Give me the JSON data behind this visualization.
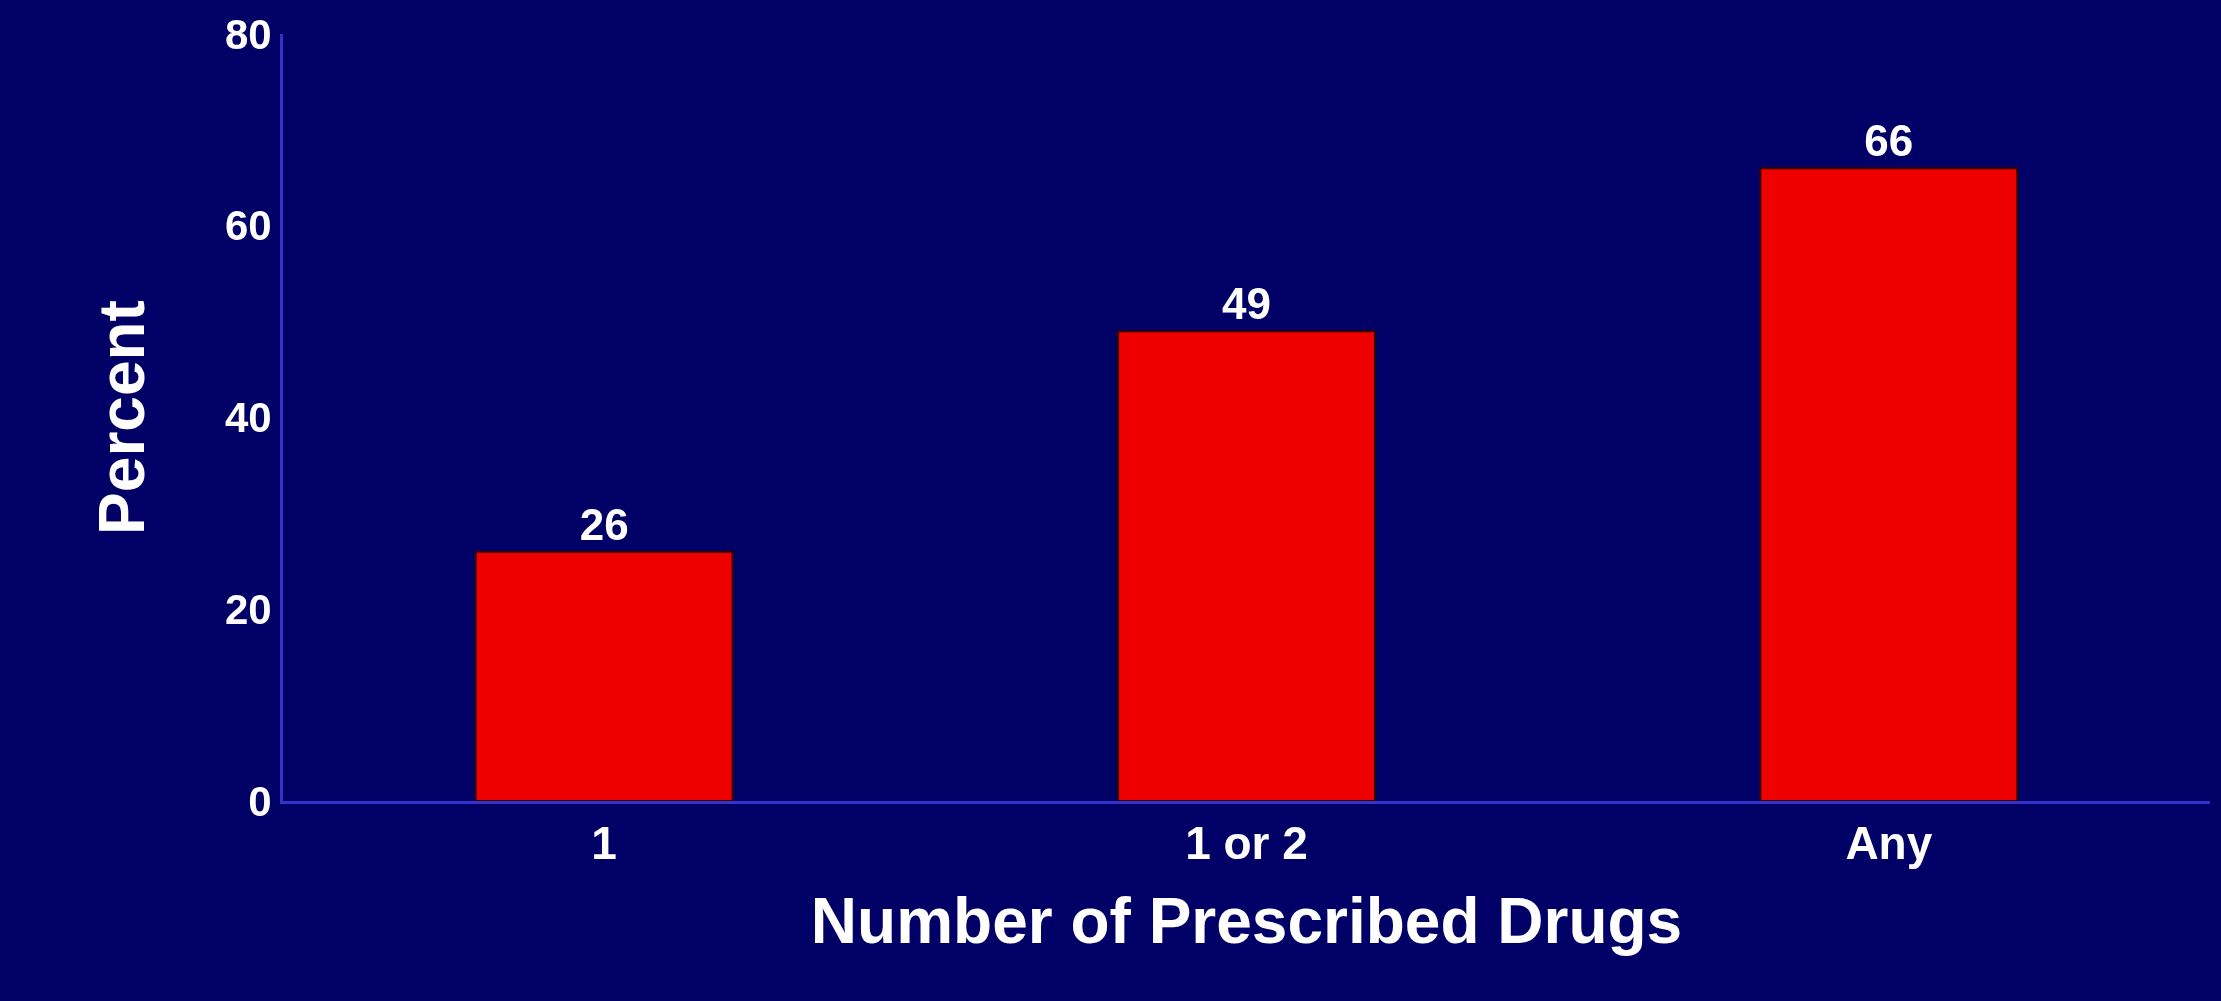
{
  "chart_data": {
    "type": "bar",
    "xlabel": "Number of Prescribed Drugs",
    "ylabel": "Percent",
    "categories": [
      "1",
      "1 or 2",
      "Any"
    ],
    "values": [
      26,
      49,
      66
    ],
    "color": "#ee0000",
    "ylim": [
      0,
      80
    ],
    "yticks": [
      0,
      20,
      40,
      60,
      80
    ],
    "grid": false,
    "data_labels": true,
    "legend": false
  }
}
